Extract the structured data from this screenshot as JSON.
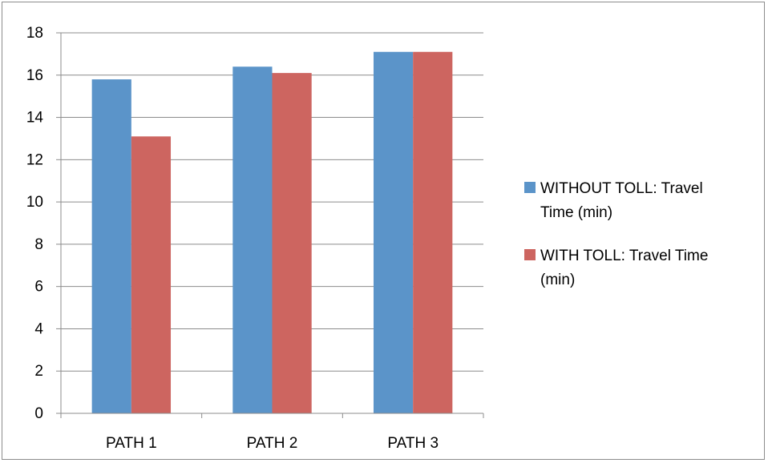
{
  "chart_data": {
    "type": "bar",
    "categories": [
      "PATH 1",
      "PATH 2",
      "PATH 3"
    ],
    "series": [
      {
        "name": "WITHOUT TOLL: Travel Time (min)",
        "values": [
          15.8,
          16.4,
          17.1
        ],
        "color": "#5b94c9"
      },
      {
        "name": "WITH TOLL: Travel Time (min)",
        "values": [
          13.1,
          16.1,
          17.1
        ],
        "color": "#cd6560"
      }
    ],
    "legend_lines": [
      [
        "WITHOUT TOLL: Travel",
        "Time (min)"
      ],
      [
        "WITH TOLL: Travel Time",
        "(min)"
      ]
    ],
    "ylim": [
      0,
      18
    ],
    "yticks": [
      0,
      2,
      4,
      6,
      8,
      10,
      12,
      14,
      16,
      18
    ],
    "grid": true,
    "legend_position": "right",
    "title": "",
    "xlabel": "",
    "ylabel": ""
  }
}
